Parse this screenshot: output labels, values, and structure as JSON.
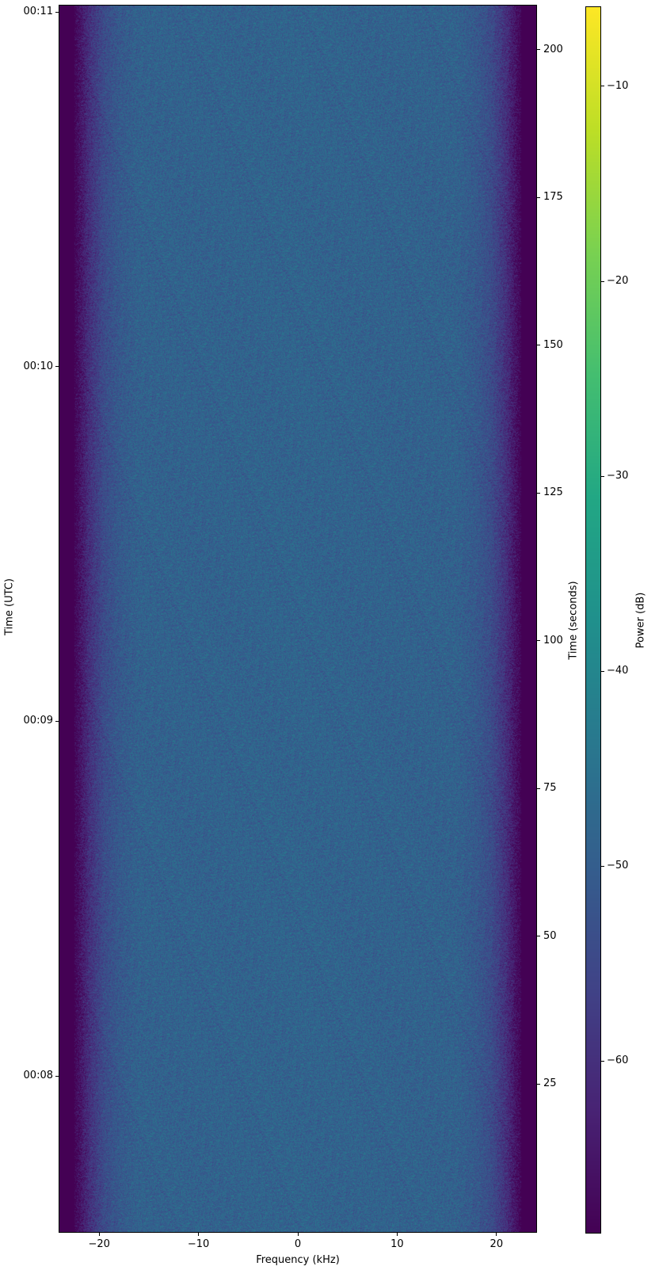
{
  "chart_data": {
    "type": "heatmap",
    "colormap": "viridis",
    "xlabel": "Frequency (kHz)",
    "ylabel": "Time (UTC)",
    "y2label": "Time (seconds)",
    "colorbar_label": "Power (dB)",
    "xlim": [
      -24,
      24
    ],
    "ylim_seconds": [
      0,
      207.5
    ],
    "clim": [
      -68.8,
      -5.9
    ],
    "xticks": [
      -20,
      -10,
      0,
      10,
      20
    ],
    "xtick_labels": [
      "−20",
      "−10",
      "0",
      "10",
      "20"
    ],
    "y2ticks": [
      25,
      50,
      75,
      100,
      125,
      150,
      175,
      200
    ],
    "y2tick_labels": [
      "25",
      "50",
      "75",
      "100",
      "125",
      "150",
      "175",
      "200"
    ],
    "yticks_seconds": [
      26.4,
      86.4,
      146.4,
      206.4
    ],
    "ytick_labels": [
      "00:08",
      "00:09",
      "00:10",
      "00:11"
    ],
    "cticks": [
      -10,
      -20,
      -30,
      -40,
      -50,
      -60
    ],
    "ctick_labels": [
      "−10",
      "−20",
      "−30",
      "−40",
      "−50",
      "−60"
    ],
    "power_profile": {
      "frequency_khz": [
        -24,
        -22.5,
        -21,
        -19.5,
        -18,
        -16,
        0,
        16,
        18,
        19.5,
        21,
        22.5,
        24
      ],
      "mean_power_db": [
        -68.8,
        -68.8,
        -60,
        -54,
        -51,
        -49,
        -48.5,
        -49,
        -51,
        -54,
        -60,
        -68.8,
        -68.8
      ]
    }
  }
}
